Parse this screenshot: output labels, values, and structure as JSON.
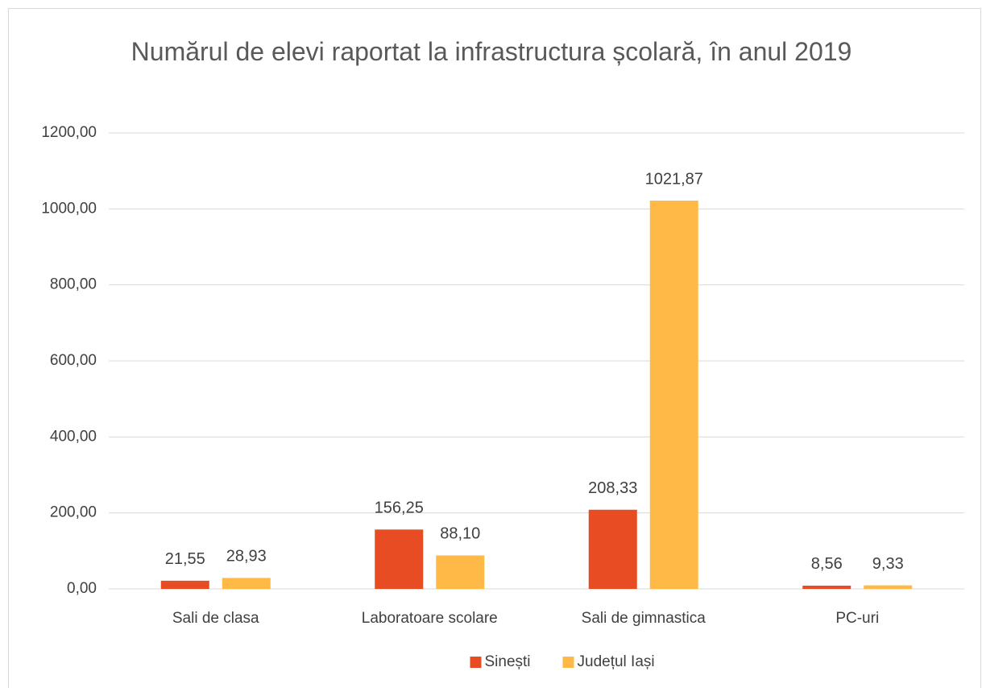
{
  "chart_data": {
    "type": "bar",
    "title": "Numărul de elevi raportat la infrastructura școlară, în anul 2019",
    "categories": [
      "Sali de clasa",
      "Laboratoare scolare",
      "Sali de gimnastica",
      "PC-uri"
    ],
    "series": [
      {
        "name": "Sinești",
        "color": "#e84c22",
        "values": [
          21.55,
          156.25,
          208.33,
          8.56
        ],
        "value_labels": [
          "21,55",
          "156,25",
          "208,33",
          "8,56"
        ]
      },
      {
        "name": "Județul Iași",
        "color": "#ffb946",
        "values": [
          28.93,
          88.1,
          1021.87,
          9.33
        ],
        "value_labels": [
          "28,93",
          "88,10",
          "1021,87",
          "9,33"
        ]
      }
    ],
    "ylim": [
      0,
      1200
    ],
    "yticks": [
      {
        "value": 0,
        "label": "0,00"
      },
      {
        "value": 200,
        "label": "200,00"
      },
      {
        "value": 400,
        "label": "400,00"
      },
      {
        "value": 600,
        "label": "600,00"
      },
      {
        "value": 800,
        "label": "800,00"
      },
      {
        "value": 1000,
        "label": "1000,00"
      },
      {
        "value": 1200,
        "label": "1200,00"
      }
    ],
    "grid": true,
    "legend": "bottom"
  }
}
